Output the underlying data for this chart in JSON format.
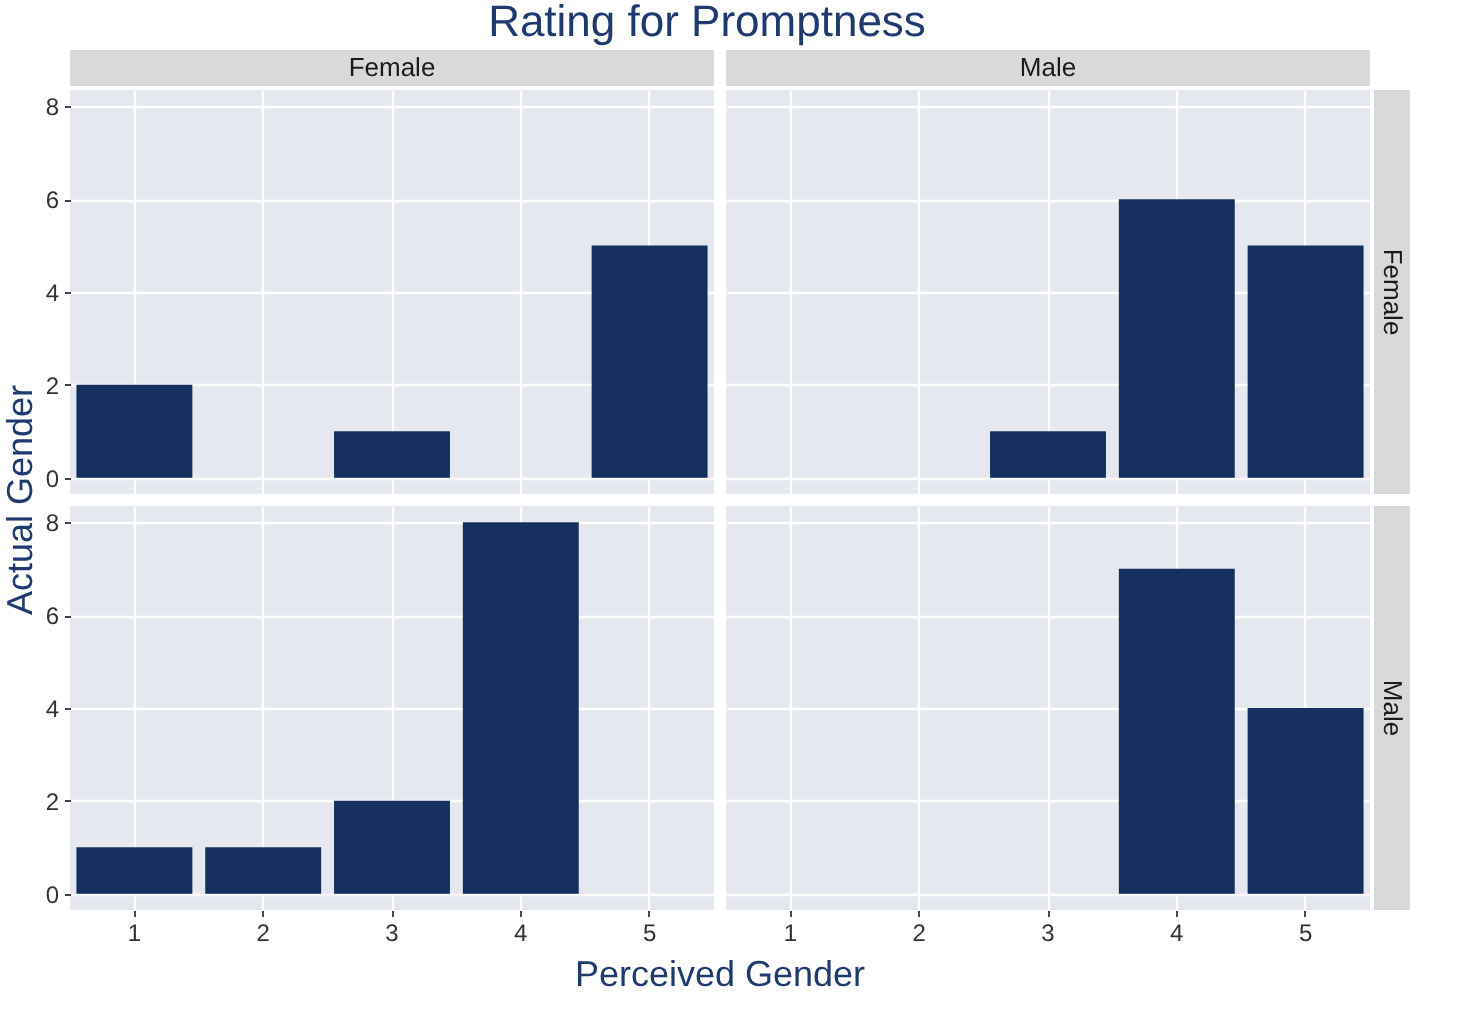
{
  "chart_data": [
    {
      "type": "bar",
      "title": "Rating for Promptness",
      "subtitle": "Female",
      "ylabel": "Actual Gender",
      "categories": [
        "1",
        "2",
        "3",
        "4",
        "5"
      ],
      "values": [
        2,
        null,
        1,
        null,
        5
      ],
      "color": "#15305f",
      "ylim": [
        -0.35,
        8.35
      ],
      "yticks": [
        0,
        2,
        4,
        6,
        8
      ],
      "grid": true,
      "tick_labels": "y"
    },
    {
      "type": "bar",
      "subtitle": "Male",
      "y2label": "Female",
      "categories": [
        "1",
        "2",
        "3",
        "4",
        "5"
      ],
      "values": [
        null,
        null,
        1,
        6,
        5
      ],
      "color": "#15305f",
      "ylim": [
        -0.35,
        8.35
      ],
      "yticks": [
        0,
        2,
        4,
        6,
        8
      ],
      "grid": true,
      "tick_labels": false
    },
    {
      "type": "bar",
      "xlabel": "Perceived Gender",
      "categories": [
        "1",
        "2",
        "3",
        "4",
        "5"
      ],
      "values": [
        1,
        1,
        2,
        8,
        null
      ],
      "color": "#15305f",
      "ylim": [
        -0.35,
        8.35
      ],
      "yticks": [
        0,
        2,
        4,
        6,
        8
      ],
      "grid": true
    },
    {
      "type": "bar",
      "y2label": "Male",
      "categories": [
        "1",
        "2",
        "3",
        "4",
        "5"
      ],
      "values": [
        null,
        null,
        null,
        7,
        4
      ],
      "color": "#15305f",
      "ylim": [
        -0.35,
        8.35
      ],
      "yticks": [
        0,
        2,
        4,
        6,
        8
      ],
      "grid": true,
      "tick_labels": "x"
    }
  ]
}
